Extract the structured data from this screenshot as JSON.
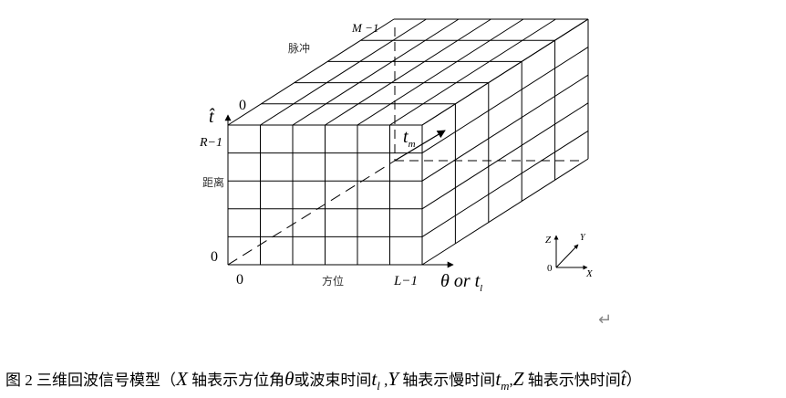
{
  "labels": {
    "m_minus_1": "M −1",
    "pulse": "脉冲",
    "t_hat": "t̂",
    "zero_top": "0",
    "r_minus_1": "R−1",
    "t_m": "t",
    "t_m_sub": "m",
    "range": "距离",
    "zero_left": "0",
    "zero_bottom": "0",
    "azimuth": "方位",
    "l_minus_1": "L−1",
    "theta_or_tl": "θ or t",
    "theta_sub": "l"
  },
  "axis_indicator": {
    "z": "Z",
    "y": "Y",
    "origin": "0",
    "x": "X"
  },
  "return_symbol": "↵",
  "caption": {
    "prefix": "图 2  三维回波信号模型（",
    "x_var": "X",
    "part1": " 轴表示方位角",
    "theta": "θ",
    "part2": "或波束时间",
    "t": "t",
    "l_sub": "l",
    "comma1": " ,",
    "y_var": "Y",
    "part3": " 轴表示慢时间",
    "m_sub": "m",
    "comma2": ",",
    "z_var": "Z",
    "part4": " 轴表示快时间",
    "t_hat": "t̂",
    "suffix": "）"
  }
}
